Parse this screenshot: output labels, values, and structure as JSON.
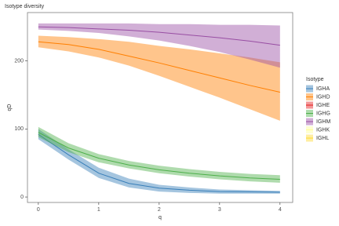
{
  "chart_data": {
    "type": "line",
    "title": "Isotype diversity",
    "x_label": "q",
    "y_label": "qD",
    "x": [
      0,
      0.5,
      1,
      1.5,
      2,
      2.5,
      3,
      3.5,
      4
    ],
    "xlim": [
      -0.18,
      4.21
    ],
    "xticks": [
      0,
      1,
      2,
      3,
      4
    ],
    "ylim": [
      -8,
      271
    ],
    "yticks": [
      0,
      100,
      200
    ],
    "legend_title": "Isotype",
    "legend": "right",
    "grid": false,
    "series": [
      {
        "name": "IGHA",
        "color": "#377eb8",
        "values": [
          92,
          62,
          35,
          20,
          13,
          10,
          8,
          7.5,
          7
        ],
        "lower": [
          85,
          55,
          28,
          14,
          8,
          6,
          5,
          5,
          5
        ],
        "upper": [
          100,
          70,
          43,
          27,
          18,
          14,
          11,
          10,
          9
        ]
      },
      {
        "name": "IGHD",
        "color": "#ff7f00",
        "values": [
          228,
          224,
          217,
          207,
          197,
          186,
          175,
          164,
          154
        ],
        "lower": [
          220,
          214,
          205,
          193,
          178,
          162,
          146,
          129,
          112
        ],
        "upper": [
          237,
          235,
          232,
          228,
          222,
          217,
          211,
          205,
          198
        ]
      },
      {
        "name": "IGHE",
        "color": "#e41a1c",
        "values": [
          null,
          null,
          null,
          null,
          null,
          null,
          null,
          null,
          null
        ]
      },
      {
        "name": "IGHG",
        "color": "#4daf4a",
        "values": [
          95,
          72,
          57,
          47,
          40,
          35,
          31,
          28,
          26
        ],
        "lower": [
          88,
          66,
          51,
          42,
          35,
          30,
          26,
          23,
          21
        ],
        "upper": [
          103,
          79,
          63,
          53,
          46,
          41,
          37,
          34,
          32
        ]
      },
      {
        "name": "IGHM",
        "color": "#984ea3",
        "values": [
          250,
          249,
          247,
          245,
          242,
          238,
          234,
          229,
          223
        ],
        "lower": [
          246,
          244,
          241,
          236,
          230,
          222,
          213,
          202,
          190
        ],
        "upper": [
          255,
          255,
          255,
          255,
          254,
          254,
          253,
          253,
          252
        ]
      },
      {
        "name": "IGHK",
        "color": "#ffff99",
        "values": [
          null,
          null,
          null,
          null,
          null,
          null,
          null,
          null,
          null
        ]
      },
      {
        "name": "IGHL",
        "color": "#ffd92f",
        "values": [
          null,
          null,
          null,
          null,
          null,
          null,
          null,
          null,
          null
        ]
      }
    ]
  }
}
